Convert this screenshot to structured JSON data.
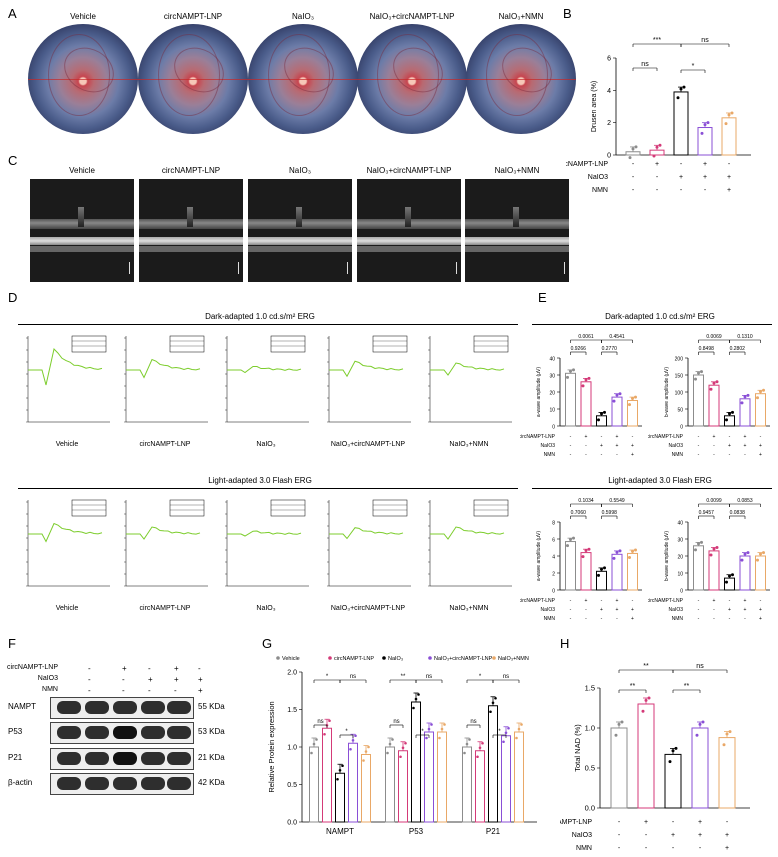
{
  "panels": {
    "A": "A",
    "B": "B",
    "C": "C",
    "D": "D",
    "E": "E",
    "F": "F",
    "G": "G",
    "H": "H"
  },
  "groups_html": [
    "Vehicle",
    "circNAMPT-LNP",
    "NaIO₃",
    "NaIO₃+circNAMPT-LNP",
    "NaIO₃+NMN"
  ],
  "groups_short": [
    "Vehicle",
    "circNAMPT-LNP",
    "NaIO₃",
    "NaIO₃+circNAMPT-LNP",
    "NaIO₃+NMN"
  ],
  "colors": {
    "vehicle": "#8c8c8c",
    "circ": "#d43a78",
    "naio3": "#000000",
    "naio3_circ": "#8a4fd6",
    "naio3_nmn": "#e9a867",
    "trace": "#7ccd2c"
  },
  "matrix_labels": {
    "circ": "circNAMPT-LNP",
    "naio3": "NaIO",
    "naio3_sub": "3",
    "nmn": "NMN"
  },
  "matrix_signs": [
    [
      "-",
      "+",
      "-",
      "+",
      "-"
    ],
    [
      "-",
      "-",
      "+",
      "+",
      "+"
    ],
    [
      "-",
      "-",
      "-",
      "-",
      "+"
    ]
  ],
  "panelB": {
    "ylabel": "Drusen area (%)",
    "yticks": [
      "0",
      "2",
      "4",
      "6"
    ],
    "sig": [
      "***",
      "ns",
      "ns",
      "*"
    ],
    "chart_data": {
      "type": "bar",
      "categories": [
        "Vehicle",
        "circNAMPT-LNP",
        "NaIO3",
        "NaIO3+circNAMPT-LNP",
        "NaIO3+NMN"
      ],
      "values": [
        0.2,
        0.3,
        3.9,
        1.7,
        2.3
      ],
      "ylim": [
        0,
        6
      ]
    }
  },
  "panelD": {
    "title_dark": "Dark-adapted 1.0 cd.s/m² ERG",
    "title_light": "Light-adapted 3.0 Flash ERG",
    "captions": [
      "Vehicle",
      "circNAMPT-LNP",
      "NaIO₃",
      "NaIO₃+circNAMPT-LNP",
      "NaIO₃+NMN"
    ]
  },
  "panelE": {
    "title_dark": "Dark-adapted 1.0 cd.s/m² ERG",
    "title_light": "Light-adapted 3.0 Flash ERG",
    "a_ylabel": "a-wave amplitude (μV)",
    "b_ylabel": "b-wave amplitude (μV)",
    "dark_a": {
      "p": [
        "0.0061",
        "0.4541",
        "0.9266",
        "0.2770"
      ],
      "yticks": [
        "0",
        "10",
        "20",
        "30",
        "40"
      ],
      "chart_data": {
        "type": "bar",
        "categories": [
          "Vehicle",
          "circNAMPT-LNP",
          "NaIO3",
          "NaIO3+circNAMPT-LNP",
          "NaIO3+NMN"
        ],
        "values": [
          31,
          26,
          6,
          17,
          15
        ],
        "ylim": [
          0,
          40
        ]
      }
    },
    "dark_b": {
      "p": [
        "0.0069",
        "0.1310",
        "0.8498",
        "0.2802"
      ],
      "yticks": [
        "0",
        "50",
        "100",
        "150",
        "200"
      ],
      "chart_data": {
        "type": "bar",
        "categories": [
          "Vehicle",
          "circNAMPT-LNP",
          "NaIO3",
          "NaIO3+circNAMPT-LNP",
          "NaIO3+NMN"
        ],
        "values": [
          150,
          120,
          30,
          80,
          95
        ],
        "ylim": [
          0,
          200
        ]
      }
    },
    "light_a": {
      "p": [
        "0.1034",
        "0.5549",
        "0.7060",
        "0.5998"
      ],
      "yticks": [
        "0",
        "2",
        "4",
        "6",
        "8"
      ],
      "chart_data": {
        "type": "bar",
        "categories": [
          "Vehicle",
          "circNAMPT-LNP",
          "NaIO3",
          "NaIO3+circNAMPT-LNP",
          "NaIO3+NMN"
        ],
        "values": [
          5.7,
          4.4,
          2.2,
          4.2,
          4.3
        ],
        "ylim": [
          0,
          8
        ]
      }
    },
    "light_b": {
      "p": [
        "0.0099",
        "0.0853",
        "0.9457",
        "0.0838"
      ],
      "yticks": [
        "0",
        "10",
        "20",
        "30",
        "40"
      ],
      "chart_data": {
        "type": "bar",
        "categories": [
          "Vehicle",
          "circNAMPT-LNP",
          "NaIO3",
          "NaIO3+circNAMPT-LNP",
          "NaIO3+NMN"
        ],
        "values": [
          26,
          23,
          7,
          20,
          20
        ],
        "ylim": [
          0,
          40
        ]
      }
    }
  },
  "panelF": {
    "row_labels": [
      "NAMPT",
      "P53",
      "P21",
      "β-actin"
    ],
    "kda": [
      "55 KDa",
      "53 KDa",
      "21 KDa",
      "42 KDa"
    ]
  },
  "panelG": {
    "legend": [
      "Vehicle",
      "circNAMPT-LNP",
      "NaIO₃",
      "NaIO₃+circNAMPT-LNP",
      "NaIO₃+NMN"
    ],
    "ylabel": "Relative Protein expression",
    "yticks": [
      "0.0",
      "0.5",
      "1.0",
      "1.5",
      "2.0"
    ],
    "categories": [
      "NAMPT",
      "P53",
      "P21"
    ],
    "chart_data": {
      "type": "bar",
      "categories": [
        "NAMPT",
        "P53",
        "P21"
      ],
      "series": [
        {
          "name": "Vehicle",
          "values": [
            1.0,
            1.0,
            1.0
          ]
        },
        {
          "name": "circNAMPT-LNP",
          "values": [
            1.25,
            0.95,
            0.95
          ]
        },
        {
          "name": "NaIO₃",
          "values": [
            0.65,
            1.6,
            1.55
          ]
        },
        {
          "name": "NaIO₃+circNAMPT-LNP",
          "values": [
            1.05,
            1.2,
            1.15
          ]
        },
        {
          "name": "NaIO₃+NMN",
          "values": [
            0.9,
            1.2,
            1.2
          ]
        }
      ],
      "ylim": [
        0,
        2
      ]
    }
  },
  "panelH": {
    "ylabel": "Total NAD (%)",
    "yticks": [
      "0.0",
      "0.5",
      "1.0",
      "1.5"
    ],
    "sig": [
      "**",
      "ns",
      "**",
      "**"
    ],
    "chart_data": {
      "type": "bar",
      "categories": [
        "Vehicle",
        "circNAMPT-LNP",
        "NaIO3",
        "NaIO3+circNAMPT-LNP",
        "NaIO3+NMN"
      ],
      "values": [
        1.0,
        1.3,
        0.67,
        1.0,
        0.88
      ],
      "ylim": [
        0,
        1.5
      ]
    }
  }
}
